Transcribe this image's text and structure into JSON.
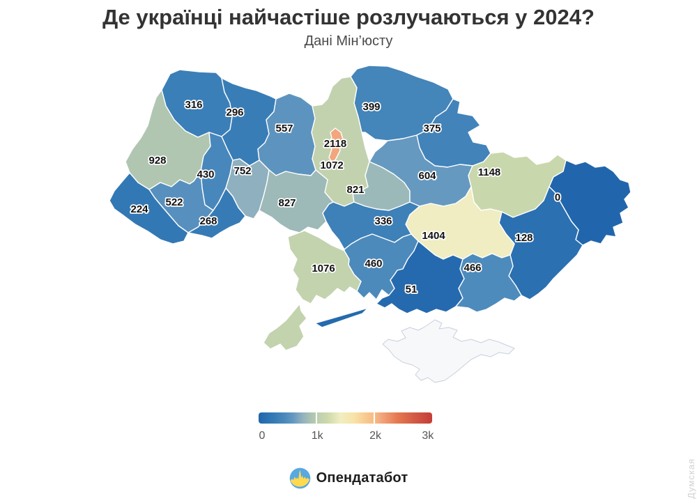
{
  "header": {
    "title": "Де українці найчастіше розлучаються у 2024?",
    "subtitle": "Дані Мін’юсту"
  },
  "chart_data": {
    "type": "heatmap",
    "subtype": "choropleth-map",
    "map": "ukraine-oblasts",
    "title": "Де українці найчастіше розлучаються у 2024?",
    "source": "Дані Мін’юсту",
    "scale": {
      "min": 0,
      "max": 3000
    },
    "no_data_color": "#f7f8fa",
    "no_data_stroke": "#c9cfdc",
    "region_stroke": "#ffffff",
    "label_color": "#111111",
    "label_halo": "#ffffff",
    "colormap_stops": [
      {
        "t": 0.0,
        "c": "#2166ac"
      },
      {
        "t": 0.08,
        "c": "#3379b5"
      },
      {
        "t": 0.15,
        "c": "#4a89bc"
      },
      {
        "t": 0.2,
        "c": "#6598c0"
      },
      {
        "t": 0.25,
        "c": "#8fb0be"
      },
      {
        "t": 0.31,
        "c": "#b0c6b1"
      },
      {
        "t": 0.36,
        "c": "#c3d3ae"
      },
      {
        "t": 0.4,
        "c": "#cedaab"
      },
      {
        "t": 0.47,
        "c": "#f0eec2"
      },
      {
        "t": 0.55,
        "c": "#f8e3a8"
      },
      {
        "t": 0.62,
        "c": "#f7c98f"
      },
      {
        "t": 0.67,
        "c": "#f6bb85"
      },
      {
        "t": 0.71,
        "c": "#f2a47c"
      },
      {
        "t": 0.8,
        "c": "#e5794f"
      },
      {
        "t": 0.9,
        "c": "#d25945"
      },
      {
        "t": 1.0,
        "c": "#c43d36"
      }
    ],
    "regions": [
      {
        "id": "crimea",
        "value": null,
        "label": ""
      },
      {
        "id": "volyn",
        "value": 316,
        "label": "316"
      },
      {
        "id": "rivne",
        "value": 296,
        "label": "296"
      },
      {
        "id": "zhytomyr",
        "value": 557,
        "label": "557"
      },
      {
        "id": "chernihiv",
        "value": 399,
        "label": "399"
      },
      {
        "id": "sumy",
        "value": 375,
        "label": "375"
      },
      {
        "id": "lviv",
        "value": 928,
        "label": "928"
      },
      {
        "id": "ternopil",
        "value": 430,
        "label": "430"
      },
      {
        "id": "khmelnytskyi",
        "value": 752,
        "label": "752"
      },
      {
        "id": "kyiv-oblast",
        "value": 1072,
        "label": "1072"
      },
      {
        "id": "vinnytsia",
        "value": 827,
        "label": "827"
      },
      {
        "id": "ivano-frankivsk",
        "value": 522,
        "label": "522"
      },
      {
        "id": "zakarpattia",
        "value": 224,
        "label": "224"
      },
      {
        "id": "chernivtsi",
        "value": 268,
        "label": "268"
      },
      {
        "id": "cherkasy",
        "value": 821,
        "label": "821"
      },
      {
        "id": "poltava",
        "value": 604,
        "label": "604"
      },
      {
        "id": "kharkiv",
        "value": 1148,
        "label": "1148"
      },
      {
        "id": "luhansk",
        "value": 0,
        "label": "0"
      },
      {
        "id": "donetsk",
        "value": 128,
        "label": "128"
      },
      {
        "id": "dnipropetrovsk",
        "value": 1404,
        "label": "1404"
      },
      {
        "id": "kirovohrad",
        "value": 336,
        "label": "336"
      },
      {
        "id": "mykolaiv",
        "value": 460,
        "label": "460"
      },
      {
        "id": "odesa",
        "value": 1076,
        "label": "1076"
      },
      {
        "id": "kherson",
        "value": 51,
        "label": "51"
      },
      {
        "id": "zaporizhzhia",
        "value": 466,
        "label": "466"
      },
      {
        "id": "kyiv-city",
        "value": 2118,
        "label": "2118"
      }
    ]
  },
  "legend": {
    "min": 0,
    "max": 3000,
    "ticks": [
      "0",
      "1k",
      "2k",
      "3k"
    ]
  },
  "footer": {
    "brand": "Опендатабот"
  },
  "watermark": {
    "text": "Думская"
  },
  "logo_colors": {
    "blue": "#58a8e1",
    "yellow": "#ffd94e"
  }
}
